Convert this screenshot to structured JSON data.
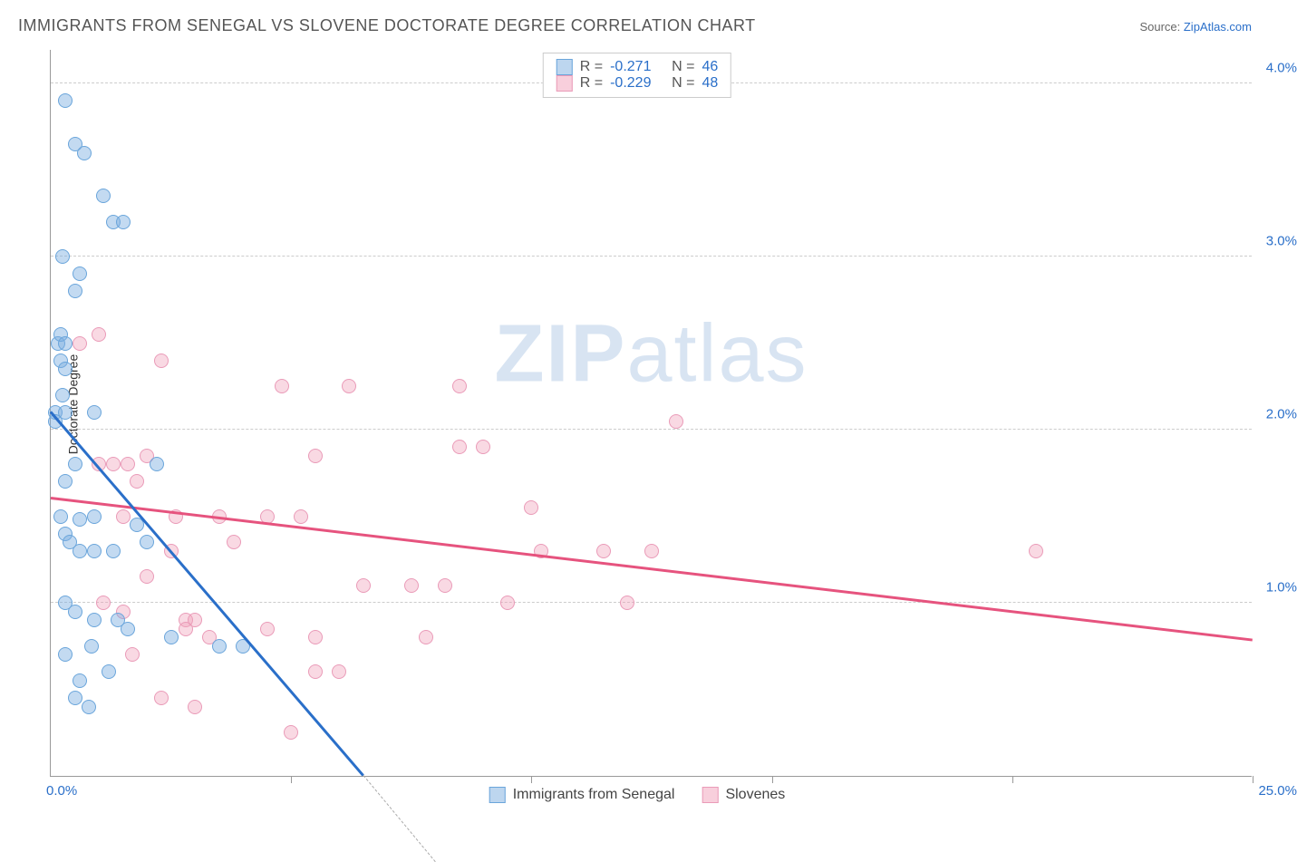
{
  "title": "IMMIGRANTS FROM SENEGAL VS SLOVENE DOCTORATE DEGREE CORRELATION CHART",
  "source_label": "Source: ",
  "source_link": "ZipAtlas.com",
  "watermark_zip": "ZIP",
  "watermark_atlas": "atlas",
  "y_axis_label": "Doctorate Degree",
  "legend_top": {
    "series1": {
      "r_label": "R =",
      "r_value": "-0.271",
      "n_label": "N =",
      "n_value": "46"
    },
    "series2": {
      "r_label": "R =",
      "r_value": "-0.229",
      "n_label": "N =",
      "n_value": "48"
    }
  },
  "legend_bottom": {
    "series1_label": "Immigrants from Senegal",
    "series2_label": "Slovenes"
  },
  "chart": {
    "type": "scatter",
    "xlim": [
      0,
      25
    ],
    "ylim": [
      0,
      4.2
    ],
    "y_ticks": [
      1.0,
      2.0,
      3.0,
      4.0
    ],
    "y_tick_labels": [
      "1.0%",
      "2.0%",
      "3.0%",
      "4.0%"
    ],
    "x_ticks": [
      0,
      5,
      10,
      15,
      20,
      25
    ],
    "x_left_label": "0.0%",
    "x_right_label": "25.0%",
    "colors": {
      "blue_fill": "rgba(123,174,224,0.45)",
      "blue_stroke": "#6aa5db",
      "blue_line": "#2a6fc9",
      "pink_fill": "rgba(241,160,186,0.4)",
      "pink_stroke": "#ea9bb8",
      "pink_line": "#e6537e",
      "grid": "#cccccc",
      "axis": "#999999",
      "text_axis": "#2a6fc9",
      "background": "#ffffff"
    },
    "marker_size": 16,
    "line_width": 2.5,
    "series_blue": {
      "points": [
        [
          0.3,
          3.9
        ],
        [
          0.5,
          3.65
        ],
        [
          0.7,
          3.6
        ],
        [
          1.1,
          3.35
        ],
        [
          1.3,
          3.2
        ],
        [
          1.5,
          3.2
        ],
        [
          0.25,
          3.0
        ],
        [
          0.6,
          2.9
        ],
        [
          0.5,
          2.8
        ],
        [
          0.15,
          2.5
        ],
        [
          0.2,
          2.55
        ],
        [
          0.3,
          2.5
        ],
        [
          0.2,
          2.4
        ],
        [
          0.3,
          2.35
        ],
        [
          0.25,
          2.2
        ],
        [
          0.1,
          2.1
        ],
        [
          0.3,
          2.1
        ],
        [
          0.9,
          2.1
        ],
        [
          0.1,
          2.05
        ],
        [
          0.5,
          1.8
        ],
        [
          0.3,
          1.7
        ],
        [
          0.2,
          1.5
        ],
        [
          0.6,
          1.48
        ],
        [
          0.9,
          1.5
        ],
        [
          0.3,
          1.4
        ],
        [
          0.4,
          1.35
        ],
        [
          0.6,
          1.3
        ],
        [
          0.9,
          1.3
        ],
        [
          1.3,
          1.3
        ],
        [
          0.3,
          1.0
        ],
        [
          0.5,
          0.95
        ],
        [
          0.9,
          0.9
        ],
        [
          1.4,
          0.9
        ],
        [
          1.6,
          0.85
        ],
        [
          2.5,
          0.8
        ],
        [
          0.85,
          0.75
        ],
        [
          0.3,
          0.7
        ],
        [
          0.6,
          0.55
        ],
        [
          1.2,
          0.6
        ],
        [
          0.5,
          0.45
        ],
        [
          0.8,
          0.4
        ],
        [
          2.2,
          1.8
        ],
        [
          1.8,
          1.45
        ],
        [
          2.0,
          1.35
        ],
        [
          3.5,
          0.75
        ],
        [
          4.0,
          0.75
        ]
      ],
      "trend": {
        "x1": 0,
        "y1": 2.1,
        "x2": 6.5,
        "y2": 0
      },
      "trend_dash": {
        "x1": 6.5,
        "y1": 0,
        "x2": 8.0,
        "y2": -0.5
      }
    },
    "series_pink": {
      "points": [
        [
          1.0,
          2.55
        ],
        [
          0.6,
          2.5
        ],
        [
          2.3,
          2.4
        ],
        [
          2.0,
          1.85
        ],
        [
          1.6,
          1.8
        ],
        [
          1.3,
          1.8
        ],
        [
          4.8,
          2.25
        ],
        [
          6.2,
          2.25
        ],
        [
          8.5,
          2.25
        ],
        [
          3.5,
          1.5
        ],
        [
          1.8,
          1.7
        ],
        [
          2.6,
          1.5
        ],
        [
          5.5,
          1.85
        ],
        [
          8.5,
          1.9
        ],
        [
          9.0,
          1.9
        ],
        [
          13.0,
          2.05
        ],
        [
          10.0,
          1.55
        ],
        [
          5.2,
          1.5
        ],
        [
          4.5,
          1.5
        ],
        [
          6.5,
          1.1
        ],
        [
          7.5,
          1.1
        ],
        [
          8.2,
          1.1
        ],
        [
          9.5,
          1.0
        ],
        [
          10.2,
          1.3
        ],
        [
          12.0,
          1.0
        ],
        [
          12.5,
          1.3
        ],
        [
          2.8,
          0.9
        ],
        [
          3.0,
          0.9
        ],
        [
          4.5,
          0.85
        ],
        [
          5.5,
          0.8
        ],
        [
          7.8,
          0.8
        ],
        [
          1.7,
          0.7
        ],
        [
          2.8,
          0.85
        ],
        [
          3.3,
          0.8
        ],
        [
          2.0,
          1.15
        ],
        [
          2.5,
          1.3
        ],
        [
          3.8,
          1.35
        ],
        [
          6.0,
          0.6
        ],
        [
          5.5,
          0.6
        ],
        [
          2.3,
          0.45
        ],
        [
          3.0,
          0.4
        ],
        [
          5.0,
          0.25
        ],
        [
          20.5,
          1.3
        ],
        [
          11.5,
          1.3
        ],
        [
          1.0,
          1.8
        ],
        [
          1.5,
          1.5
        ],
        [
          1.1,
          1.0
        ],
        [
          1.5,
          0.95
        ]
      ],
      "trend": {
        "x1": 0,
        "y1": 1.6,
        "x2": 25,
        "y2": 0.78
      }
    }
  }
}
